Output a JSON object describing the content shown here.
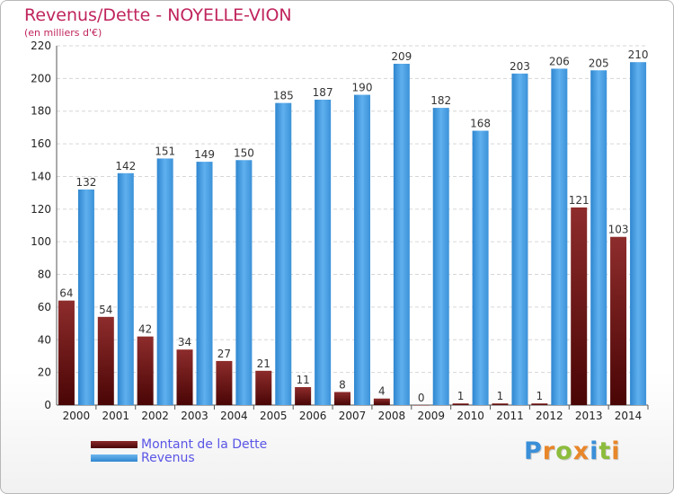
{
  "header": {
    "title": "Revenus/Dette - NOYELLE-VION",
    "subtitle": "(en milliers d'€)"
  },
  "legend": {
    "items": [
      {
        "label": "Montant de la Dette",
        "color": "#6e1414"
      },
      {
        "label": "Revenus",
        "color": "#4a9de0"
      }
    ]
  },
  "logo": {
    "letters": [
      {
        "ch": "P",
        "color": "#3a8fd8"
      },
      {
        "ch": "r",
        "color": "#e8862a"
      },
      {
        "ch": "o",
        "color": "#8cbc3c"
      },
      {
        "ch": "x",
        "color": "#e8862a"
      },
      {
        "ch": "i",
        "color": "#3a8fd8"
      },
      {
        "ch": "t",
        "color": "#8cbc3c"
      },
      {
        "ch": "i",
        "color": "#e8862a"
      }
    ]
  },
  "chart_data": {
    "type": "bar",
    "categories": [
      "2000",
      "2001",
      "2002",
      "2003",
      "2004",
      "2005",
      "2006",
      "2007",
      "2008",
      "2009",
      "2010",
      "2011",
      "2012",
      "2013",
      "2014"
    ],
    "series": [
      {
        "name": "Montant de la Dette",
        "color": "#6e1414",
        "values": [
          64,
          54,
          42,
          34,
          27,
          21,
          11,
          8,
          4,
          0,
          1,
          1,
          1,
          121,
          103
        ]
      },
      {
        "name": "Revenus",
        "color": "#4a9de0",
        "values": [
          132,
          142,
          151,
          149,
          150,
          185,
          187,
          190,
          209,
          182,
          168,
          203,
          206,
          205,
          210
        ]
      }
    ],
    "title": "Revenus/Dette - NOYELLE-VION",
    "ylabel": "(en milliers d'€)",
    "ylim": [
      0,
      220
    ],
    "yticks": [
      0,
      20,
      40,
      60,
      80,
      100,
      120,
      140,
      160,
      180,
      200,
      220
    ],
    "grid": true,
    "legend_position": "bottom-left"
  }
}
